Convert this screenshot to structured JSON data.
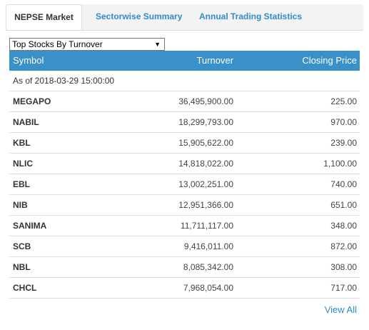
{
  "tabs": [
    {
      "label": "NEPSE Market",
      "active": true
    },
    {
      "label": "Sectorwise Summary",
      "active": false
    },
    {
      "label": "Annual Trading Statistics",
      "active": false
    }
  ],
  "selector": {
    "selected": "Top Stocks By Turnover",
    "arrow_icon": "triangle-down"
  },
  "table": {
    "headers": {
      "symbol": "Symbol",
      "turnover": "Turnover",
      "closing_price": "Closing Price"
    },
    "as_of": "As of 2018-03-29 15:00:00",
    "rows": [
      {
        "symbol": "MEGAPO",
        "turnover": "36,495,900.00",
        "closing_price": "225.00"
      },
      {
        "symbol": "NABIL",
        "turnover": "18,299,793.00",
        "closing_price": "970.00"
      },
      {
        "symbol": "KBL",
        "turnover": "15,905,622.00",
        "closing_price": "239.00"
      },
      {
        "symbol": "NLIC",
        "turnover": "14,818,022.00",
        "closing_price": "1,100.00"
      },
      {
        "symbol": "EBL",
        "turnover": "13,002,251.00",
        "closing_price": "740.00"
      },
      {
        "symbol": "NIB",
        "turnover": "12,951,366.00",
        "closing_price": "651.00"
      },
      {
        "symbol": "SANIMA",
        "turnover": "11,711,117.00",
        "closing_price": "348.00"
      },
      {
        "symbol": "SCB",
        "turnover": "9,416,011.00",
        "closing_price": "872.00"
      },
      {
        "symbol": "NBL",
        "turnover": "8,085,342.00",
        "closing_price": "308.00"
      },
      {
        "symbol": "CHCL",
        "turnover": "7,968,054.00",
        "closing_price": "717.00"
      }
    ]
  },
  "view_all_label": "View All",
  "colors": {
    "header_bg": "#3a90c8",
    "link": "#2f8bcb"
  }
}
